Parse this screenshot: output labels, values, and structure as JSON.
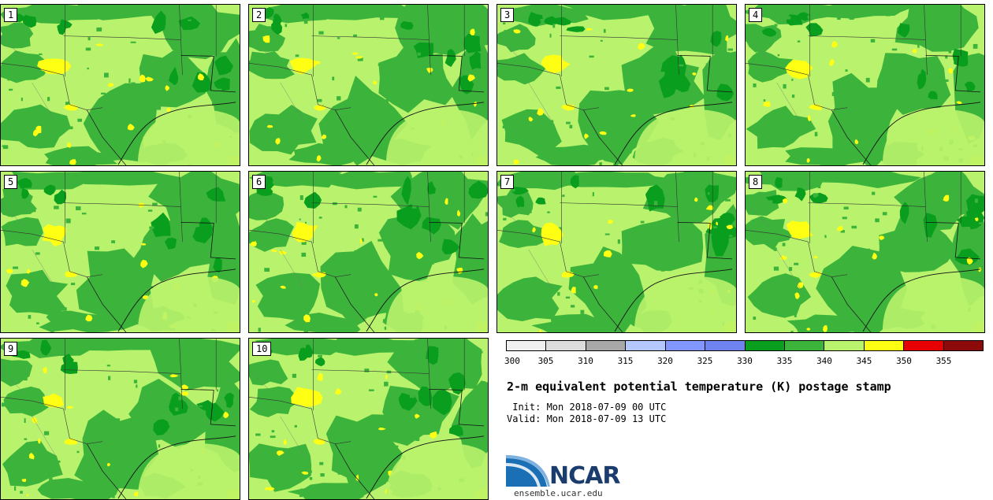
{
  "panels": [
    {
      "label": "1"
    },
    {
      "label": "2"
    },
    {
      "label": "3"
    },
    {
      "label": "4"
    },
    {
      "label": "5"
    },
    {
      "label": "6"
    },
    {
      "label": "7"
    },
    {
      "label": "8"
    },
    {
      "label": "9"
    },
    {
      "label": "10"
    }
  ],
  "colorbar": {
    "colors": [
      "#f0f0f0",
      "#dcdcdc",
      "#a8a8a8",
      "#b4c8ff",
      "#8296ff",
      "#6e82f0",
      "#0a9e1e",
      "#3cb43c",
      "#b9f26c",
      "#ffff14",
      "#e60000",
      "#8c0a0a"
    ],
    "ticks": [
      "300",
      "305",
      "310",
      "315",
      "320",
      "325",
      "330",
      "335",
      "340",
      "345",
      "350",
      "355"
    ]
  },
  "header": {
    "title": "2-m equivalent potential temperature (K) postage stamp",
    "init": " Init: Mon 2018-07-09 00 UTC",
    "valid": "Valid: Mon 2018-07-09 13 UTC"
  },
  "logo": {
    "name": "NCAR",
    "site": "ensemble.ucar.edu"
  }
}
